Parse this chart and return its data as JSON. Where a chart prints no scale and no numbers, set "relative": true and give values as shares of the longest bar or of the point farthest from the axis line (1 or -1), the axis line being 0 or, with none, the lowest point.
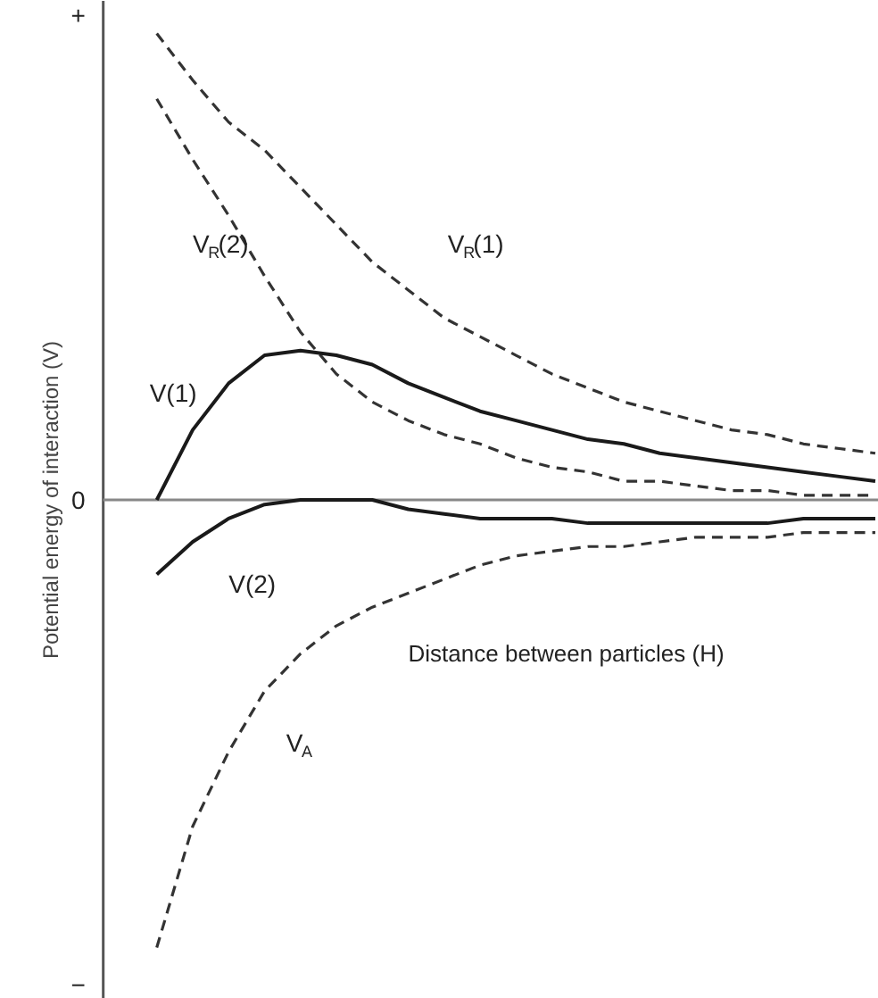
{
  "chart_data": {
    "type": "line",
    "relative": true,
    "xlabel": "Distance between particles (H)",
    "ylabel": "Potential energy of interaction (V)",
    "categories": [
      null,
      null,
      null,
      null,
      null,
      null,
      null,
      null,
      null,
      null,
      null,
      null,
      null,
      null,
      null,
      null,
      null,
      null,
      null,
      null,
      null
    ],
    "annotations": [
      "+",
      "0",
      "−"
    ],
    "grid": false,
    "marker": "none",
    "series": [
      {
        "name": "V$_{R}$(1)",
        "color": "#333333",
        "line_style": "dashed",
        "values": [
          1.0,
          0.9,
          0.81,
          0.75,
          0.67,
          0.59,
          0.51,
          0.45,
          0.39,
          0.35,
          0.31,
          0.27,
          0.24,
          0.21,
          0.19,
          0.17,
          0.15,
          0.14,
          0.12,
          0.11,
          0.1
        ]
      },
      {
        "name": "V$_{R}$(2)",
        "color": "#333333",
        "line_style": "dashed",
        "values": [
          0.86,
          0.73,
          0.61,
          0.48,
          0.36,
          0.27,
          0.21,
          0.17,
          0.14,
          0.12,
          0.09,
          0.07,
          0.06,
          0.04,
          0.04,
          0.03,
          0.02,
          0.02,
          0.01,
          0.01,
          0.01
        ]
      },
      {
        "name": "V(1)",
        "color": "#1a1a1a",
        "line_style": "solid",
        "values": [
          0.0,
          0.15,
          0.25,
          0.31,
          0.32,
          0.31,
          0.29,
          0.25,
          0.22,
          0.19,
          0.17,
          0.15,
          0.13,
          0.12,
          0.1,
          0.09,
          0.08,
          0.07,
          0.06,
          0.05,
          0.04
        ]
      },
      {
        "name": "V(2)",
        "color": "#1a1a1a",
        "line_style": "solid",
        "values": [
          -0.16,
          -0.09,
          -0.04,
          -0.01,
          0.0,
          0.0,
          0.0,
          -0.02,
          -0.03,
          -0.04,
          -0.04,
          -0.04,
          -0.05,
          -0.05,
          -0.05,
          -0.05,
          -0.05,
          -0.05,
          -0.04,
          -0.04,
          -0.04
        ]
      },
      {
        "name": "V$_{A}$",
        "color": "#333333",
        "line_style": "dashed",
        "values": [
          -0.96,
          -0.7,
          -0.54,
          -0.41,
          -0.33,
          -0.27,
          -0.23,
          -0.2,
          -0.17,
          -0.14,
          -0.12,
          -0.11,
          -0.1,
          -0.1,
          -0.09,
          -0.08,
          -0.08,
          -0.08,
          -0.07,
          -0.07,
          -0.07
        ]
      }
    ]
  }
}
